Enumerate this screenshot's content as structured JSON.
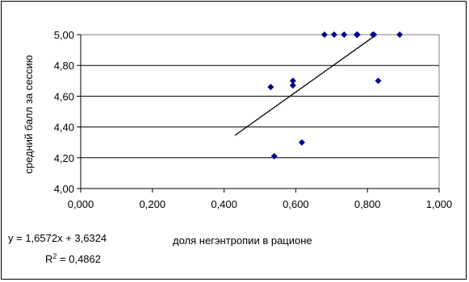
{
  "chart_data": {
    "type": "scatter",
    "title": "",
    "xlabel": "доля негэнтропии в рационе",
    "ylabel": "средний балл за сессию",
    "xlim": [
      0,
      1
    ],
    "ylim": [
      4.0,
      5.0
    ],
    "x_ticks": [
      "0,000",
      "0,200",
      "0,400",
      "0,600",
      "0,800",
      "1,000"
    ],
    "y_ticks": [
      "4,00",
      "4,20",
      "4,40",
      "4,60",
      "4,80",
      "5,00"
    ],
    "grid": "horizontal",
    "marker_color": "#00008B",
    "points": [
      {
        "x": 0.53,
        "y": 4.66
      },
      {
        "x": 0.54,
        "y": 4.21
      },
      {
        "x": 0.592,
        "y": 4.7
      },
      {
        "x": 0.592,
        "y": 4.67
      },
      {
        "x": 0.617,
        "y": 4.3
      },
      {
        "x": 0.68,
        "y": 5.0
      },
      {
        "x": 0.707,
        "y": 5.0
      },
      {
        "x": 0.735,
        "y": 5.0
      },
      {
        "x": 0.77,
        "y": 5.0
      },
      {
        "x": 0.772,
        "y": 5.0
      },
      {
        "x": 0.815,
        "y": 5.0
      },
      {
        "x": 0.818,
        "y": 5.0
      },
      {
        "x": 0.83,
        "y": 4.7
      },
      {
        "x": 0.89,
        "y": 5.0
      }
    ],
    "trendline": {
      "slope": 1.6572,
      "intercept": 3.6324,
      "x_range": [
        0.43,
        0.825
      ]
    },
    "equation": "y = 1,6572x + 3,6324",
    "r2_prefix": "R",
    "r2_sup": "2",
    "r2_value": " = 0,4862"
  }
}
